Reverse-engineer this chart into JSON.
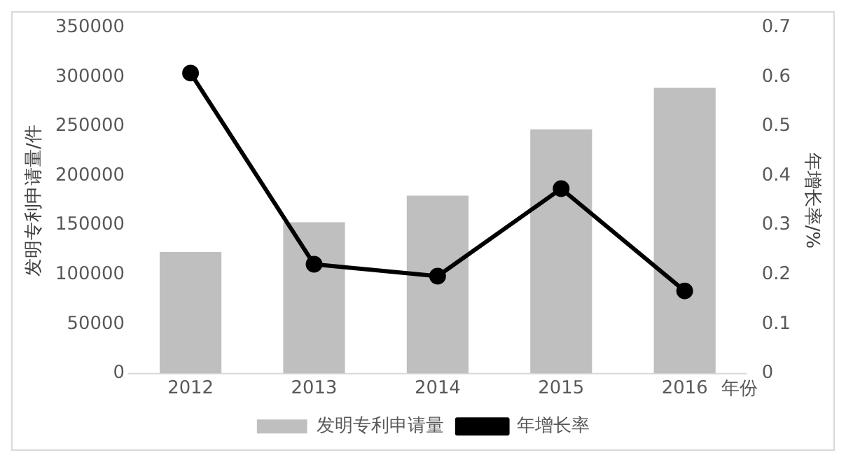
{
  "chart_data": {
    "type": "bar",
    "categories": [
      "2012",
      "2013",
      "2014",
      "2015",
      "2016"
    ],
    "xlabel": "年份",
    "ylabel": "发明专利申请量/件",
    "y2label": "年增长率/%",
    "series": [
      {
        "name": "发明专利申请量",
        "color": "#bfbfbf",
        "values": [
          123000,
          153000,
          180000,
          247000,
          289000
        ]
      },
      {
        "name": "年增长率",
        "type": "line",
        "axis": "y2",
        "color": "#000000",
        "values": [
          0.608,
          0.221,
          0.197,
          0.374,
          0.167
        ],
        "marker": "circle"
      }
    ],
    "ylim": [
      0,
      350000
    ],
    "yticks": [
      0,
      50000,
      100000,
      150000,
      200000,
      250000,
      300000,
      350000
    ],
    "y2lim": [
      0,
      0.7
    ],
    "y2ticks": [
      0,
      0.1,
      0.2,
      0.3,
      0.4,
      0.5,
      0.6,
      0.7
    ],
    "grid": false,
    "legend": "bottom"
  }
}
